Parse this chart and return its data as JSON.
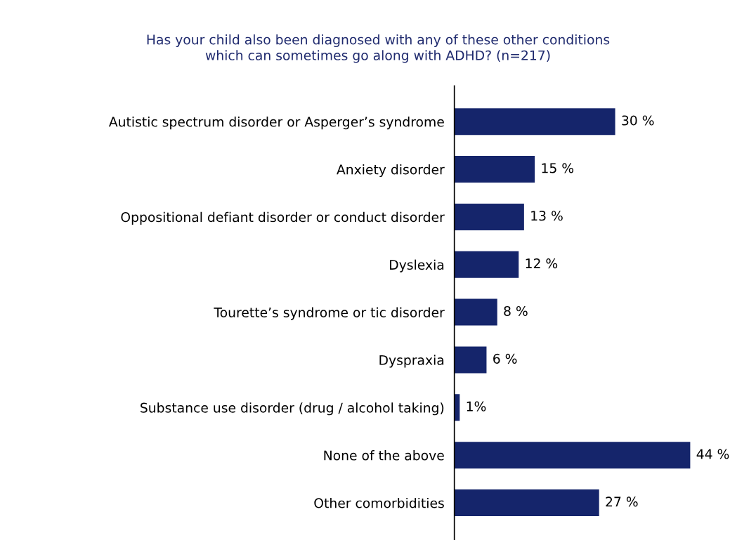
{
  "chart_data": {
    "type": "bar",
    "orientation": "horizontal",
    "title": "Has your child also been diagnosed with any of these other conditions\nwhich can sometimes go along with ADHD? (n=217)",
    "categories": [
      "Autistic spectrum disorder or Asperger’s syndrome",
      "Anxiety disorder",
      "Oppositional defiant disorder or conduct disorder",
      "Dyslexia",
      "Tourette’s syndrome or tic disorder",
      "Dyspraxia",
      "Substance use disorder (drug / alcohol taking)",
      "None of the above",
      "Other comorbidities"
    ],
    "values": [
      30,
      15,
      13,
      12,
      8,
      6,
      1,
      44,
      27
    ],
    "value_labels": [
      "30 %",
      "15 %",
      "13 %",
      "12 %",
      "8 %",
      "6 %",
      "1%",
      "44 %",
      "27 %"
    ],
    "color": "#15256b",
    "grid": false,
    "legend": false
  }
}
